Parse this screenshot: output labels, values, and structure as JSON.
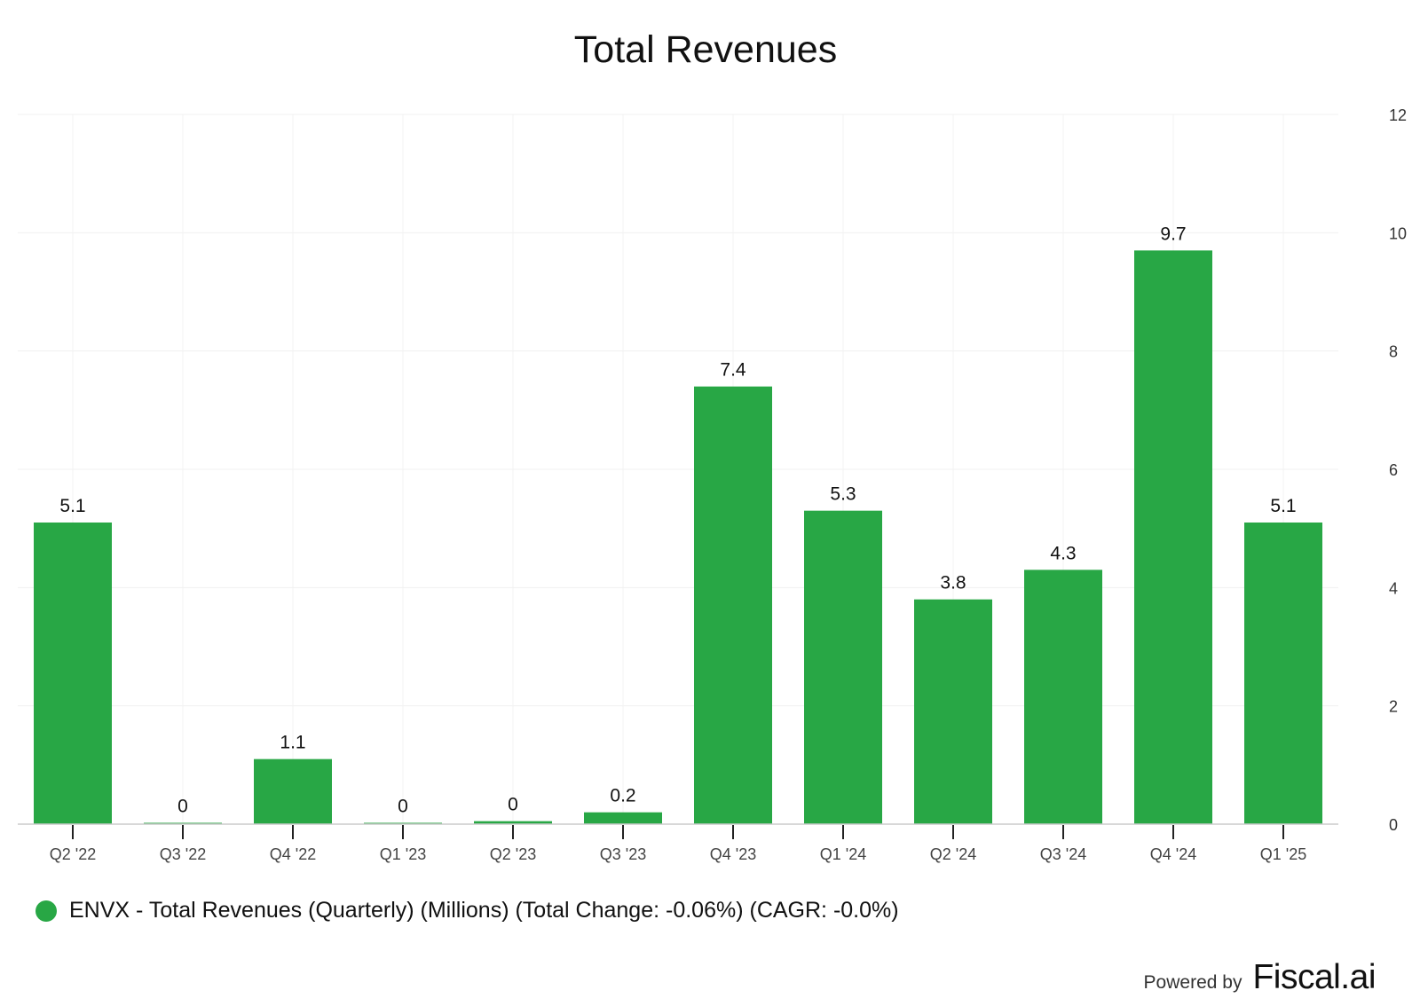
{
  "chart_data": {
    "type": "bar",
    "title": "Total Revenues",
    "categories": [
      "Q2 '22",
      "Q3 '22",
      "Q4 '22",
      "Q1 '23",
      "Q2 '23",
      "Q3 '23",
      "Q4 '23",
      "Q1 '24",
      "Q2 '24",
      "Q3 '24",
      "Q4 '24",
      "Q1 '25"
    ],
    "series": [
      {
        "name": "ENVX - Total Revenues (Quarterly) (Millions) (Total Change: -0.06%) (CAGR: -0.0%)",
        "values": [
          5.1,
          0.02,
          1.1,
          0.02,
          0.05,
          0.2,
          7.4,
          5.3,
          3.8,
          4.3,
          9.7,
          5.1
        ],
        "labels": [
          "5.1",
          "0",
          "1.1",
          "0",
          "0",
          "0.2",
          "7.4",
          "5.3",
          "3.8",
          "4.3",
          "9.7",
          "5.1"
        ],
        "color": "#28a745"
      }
    ],
    "yticks": [
      "0",
      "2",
      "4",
      "6",
      "8",
      "10",
      "12"
    ],
    "ylim": [
      0,
      12
    ],
    "y_axis_side": "right",
    "grid": true,
    "legend": "bottom-left"
  },
  "footer": {
    "powered_label": "Powered by",
    "brand": "Fiscal.ai"
  }
}
